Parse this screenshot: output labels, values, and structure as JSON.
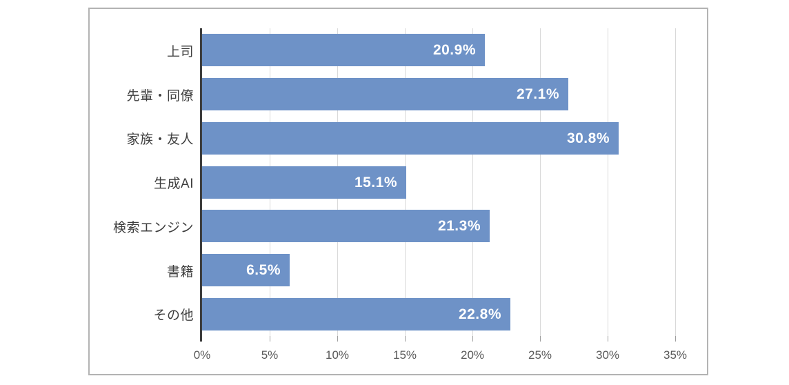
{
  "chart_data": {
    "type": "bar",
    "orientation": "horizontal",
    "title": "",
    "xlabel": "",
    "ylabel": "",
    "categories": [
      "上司",
      "先輩・同僚",
      "家族・友人",
      "生成AI",
      "検索エンジン",
      "書籍",
      "その他"
    ],
    "values": [
      20.9,
      27.1,
      30.8,
      15.1,
      21.3,
      6.5,
      22.8
    ],
    "data_labels": [
      "20.9%",
      "27.1%",
      "30.8%",
      "15.1%",
      "21.3%",
      "6.5%",
      "22.8%"
    ],
    "x_ticks": [
      "0%",
      "5%",
      "10%",
      "15%",
      "20%",
      "25%",
      "30%",
      "35%"
    ],
    "x_tick_values": [
      0,
      5,
      10,
      15,
      20,
      25,
      30,
      35
    ],
    "xlim": [
      0,
      35
    ],
    "grid": "vertical",
    "legend": "none",
    "colors": {
      "bar": "#6e92c7",
      "data_label": "#ffffff",
      "axis_line": "#3d3d3d",
      "gridline": "#d9d9d9",
      "tick": "#9e9e9e",
      "tick_label": "#595959",
      "category_label": "#3f3f3f",
      "frame_border": "#b3b3b3",
      "background": "#ffffff"
    }
  }
}
